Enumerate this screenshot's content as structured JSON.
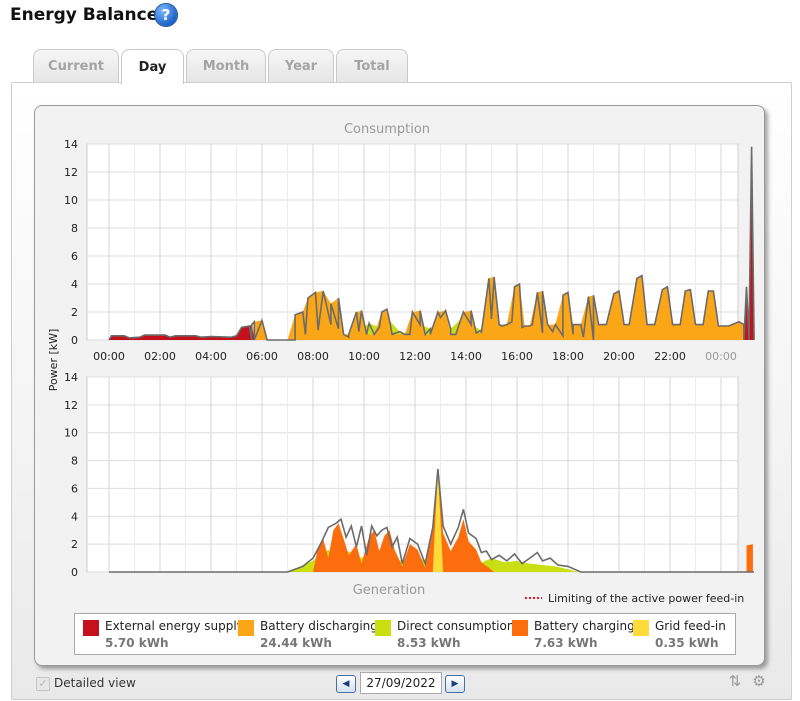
{
  "header": {
    "title": "Energy Balance",
    "help_icon": "help-icon"
  },
  "tabs": [
    {
      "label": "Current",
      "active": false
    },
    {
      "label": "Day",
      "active": true
    },
    {
      "label": "Month",
      "active": false
    },
    {
      "label": "Year",
      "active": false
    },
    {
      "label": "Total",
      "active": false
    }
  ],
  "colors": {
    "external": "#c4111b",
    "battery_discharging": "#fba617",
    "direct_consumption": "#c9df12",
    "battery_charging": "#fc6d0e",
    "grid_feed_in": "#fddc3a",
    "outline": "#6b6b6b",
    "limit_line": "#e01a1a"
  },
  "chart_data": {
    "type": "area",
    "ylabel": "Power [kW]",
    "x_ticks": [
      "00:00",
      "02:00",
      "04:00",
      "06:00",
      "08:00",
      "10:00",
      "12:00",
      "14:00",
      "16:00",
      "18:00",
      "20:00",
      "22:00",
      "00:00"
    ],
    "y_ticks": [
      "0",
      "2",
      "4",
      "6",
      "8",
      "10",
      "12",
      "14"
    ],
    "ylim": [
      0,
      14
    ],
    "grid": true,
    "consumption": {
      "title": "Consumption",
      "series": [
        {
          "name": "Direct consumption",
          "color": "#c9df12",
          "points": [
            [
              7.3,
              0
            ],
            [
              7.7,
              0.4
            ],
            [
              8.2,
              0.7
            ],
            [
              8.7,
              1.1
            ],
            [
              9.0,
              0.8
            ],
            [
              9.4,
              0.2
            ],
            [
              9.8,
              0.6
            ],
            [
              10.2,
              1.2
            ],
            [
              10.6,
              0.9
            ],
            [
              11.0,
              1.4
            ],
            [
              11.4,
              0.6
            ],
            [
              11.8,
              0.4
            ],
            [
              12.2,
              1.1
            ],
            [
              12.6,
              0.8
            ],
            [
              13.0,
              1.6
            ],
            [
              13.4,
              0.8
            ],
            [
              13.8,
              1.5
            ],
            [
              14.2,
              1.1
            ],
            [
              14.6,
              0.7
            ],
            [
              15.0,
              1.5
            ],
            [
              15.4,
              1.0
            ],
            [
              15.8,
              1.3
            ],
            [
              16.2,
              0.9
            ],
            [
              16.6,
              1.1
            ],
            [
              17.0,
              0.5
            ],
            [
              17.4,
              0.6
            ],
            [
              17.8,
              0.3
            ],
            [
              18.2,
              0.4
            ],
            [
              18.6,
              0.2
            ],
            [
              19.0,
              0
            ]
          ]
        },
        {
          "name": "Battery discharging",
          "color": "#fba617",
          "points": [
            [
              5.6,
              0
            ],
            [
              5.7,
              1.3
            ],
            [
              6.0,
              1.4
            ],
            [
              6.2,
              0
            ],
            [
              7.0,
              0
            ],
            [
              7.3,
              1.8
            ],
            [
              7.6,
              2.0
            ],
            [
              7.8,
              3.0
            ],
            [
              8.1,
              3.4
            ],
            [
              8.4,
              3.5
            ],
            [
              8.7,
              2.6
            ],
            [
              9.0,
              3.0
            ],
            [
              9.2,
              0.4
            ],
            [
              9.4,
              0.4
            ],
            [
              9.7,
              2.0
            ],
            [
              9.9,
              2.1
            ],
            [
              10.1,
              0.4
            ],
            [
              10.4,
              0.4
            ],
            [
              10.7,
              2.0
            ],
            [
              10.9,
              2.2
            ],
            [
              11.1,
              0.4
            ],
            [
              11.6,
              0.4
            ],
            [
              11.9,
              2.0
            ],
            [
              12.2,
              2.1
            ],
            [
              12.4,
              0.4
            ],
            [
              12.6,
              0.4
            ],
            [
              12.9,
              2.0
            ],
            [
              13.2,
              2.1
            ],
            [
              13.4,
              0.4
            ],
            [
              13.6,
              0.4
            ],
            [
              13.9,
              2.0
            ],
            [
              14.2,
              2.1
            ],
            [
              14.4,
              0.5
            ],
            [
              14.6,
              0.5
            ],
            [
              14.9,
              4.4
            ],
            [
              15.1,
              4.5
            ],
            [
              15.3,
              1.1
            ],
            [
              15.6,
              1.1
            ],
            [
              15.9,
              3.8
            ],
            [
              16.1,
              4.0
            ],
            [
              16.3,
              1.0
            ],
            [
              16.5,
              1.0
            ],
            [
              16.8,
              3.4
            ],
            [
              17.0,
              3.5
            ],
            [
              17.2,
              1.1
            ],
            [
              17.5,
              1.1
            ],
            [
              17.8,
              3.2
            ],
            [
              18.0,
              3.4
            ],
            [
              18.2,
              1.1
            ],
            [
              18.5,
              1.1
            ],
            [
              18.8,
              3.1
            ],
            [
              19.0,
              3.2
            ],
            [
              19.2,
              1.1
            ],
            [
              19.5,
              1.1
            ],
            [
              19.8,
              3.3
            ],
            [
              20.0,
              3.5
            ],
            [
              20.2,
              1.1
            ],
            [
              20.4,
              1.1
            ],
            [
              20.7,
              4.4
            ],
            [
              20.9,
              4.6
            ],
            [
              21.1,
              1.1
            ],
            [
              21.4,
              1.1
            ],
            [
              21.7,
              3.6
            ],
            [
              21.9,
              3.8
            ],
            [
              22.1,
              1.1
            ],
            [
              22.4,
              1.1
            ],
            [
              22.6,
              3.5
            ],
            [
              22.8,
              3.6
            ],
            [
              23.0,
              1.1
            ],
            [
              23.3,
              1.1
            ],
            [
              23.5,
              3.5
            ],
            [
              23.7,
              3.5
            ],
            [
              23.9,
              1.0
            ],
            [
              24.3,
              1.0
            ],
            [
              24.7,
              1.3
            ],
            [
              24.9,
              1.1
            ],
            [
              25.1,
              0
            ]
          ]
        },
        {
          "name": "External energy supply",
          "color": "#c4111b",
          "points": [
            [
              0.0,
              0
            ],
            [
              0.1,
              0.3
            ],
            [
              0.6,
              0.3
            ],
            [
              0.8,
              0.15
            ],
            [
              1.2,
              0.2
            ],
            [
              1.4,
              0.35
            ],
            [
              2.2,
              0.35
            ],
            [
              2.4,
              0.2
            ],
            [
              2.6,
              0.3
            ],
            [
              3.4,
              0.3
            ],
            [
              3.6,
              0.2
            ],
            [
              4.0,
              0.25
            ],
            [
              4.8,
              0.2
            ],
            [
              5.0,
              0.3
            ],
            [
              5.2,
              0.9
            ],
            [
              5.5,
              1.0
            ],
            [
              5.6,
              1.1
            ],
            [
              5.7,
              0
            ],
            [
              24.9,
              0
            ],
            [
              25.0,
              3.8
            ],
            [
              25.1,
              0.8
            ],
            [
              25.2,
              13.8
            ],
            [
              25.3,
              0
            ]
          ]
        }
      ],
      "limit_label": "Limiting of the active power feed-in"
    },
    "generation": {
      "title": "Generation",
      "series": [
        {
          "name": "Direct consumption",
          "color": "#c9df12",
          "points": [
            [
              7.0,
              0
            ],
            [
              7.5,
              0.4
            ],
            [
              8.0,
              0.8
            ],
            [
              8.3,
              1.3
            ],
            [
              8.6,
              1.6
            ],
            [
              9.0,
              1.2
            ],
            [
              9.4,
              1.5
            ],
            [
              9.8,
              1.0
            ],
            [
              10.2,
              1.2
            ],
            [
              10.6,
              0.9
            ],
            [
              11.0,
              1.1
            ],
            [
              11.5,
              0.8
            ],
            [
              12.0,
              1.2
            ],
            [
              12.5,
              0.7
            ],
            [
              13.0,
              1.0
            ],
            [
              13.5,
              0.6
            ],
            [
              14.0,
              0.8
            ],
            [
              14.5,
              0.6
            ],
            [
              15.0,
              1.0
            ],
            [
              15.5,
              0.7
            ],
            [
              16.0,
              0.8
            ],
            [
              16.5,
              0.6
            ],
            [
              17.0,
              0.5
            ],
            [
              17.5,
              0.4
            ],
            [
              18.0,
              0.2
            ],
            [
              18.4,
              0
            ]
          ]
        },
        {
          "name": "Battery charging",
          "color": "#fc6d0e",
          "points": [
            [
              8.0,
              0
            ],
            [
              8.2,
              1.8
            ],
            [
              8.4,
              2.4
            ],
            [
              8.6,
              1.0
            ],
            [
              8.8,
              3.0
            ],
            [
              9.0,
              3.5
            ],
            [
              9.2,
              2.4
            ],
            [
              9.4,
              1.2
            ],
            [
              9.7,
              2.0
            ],
            [
              9.9,
              0.6
            ],
            [
              10.2,
              2.5
            ],
            [
              10.4,
              3.0
            ],
            [
              10.6,
              1.5
            ],
            [
              10.8,
              2.6
            ],
            [
              11.0,
              3.0
            ],
            [
              11.2,
              1.6
            ],
            [
              11.5,
              0.4
            ],
            [
              11.8,
              2.0
            ],
            [
              12.1,
              1.6
            ],
            [
              12.4,
              0.3
            ],
            [
              12.7,
              3.2
            ],
            [
              12.9,
              7.0
            ],
            [
              13.1,
              2.8
            ],
            [
              13.4,
              1.5
            ],
            [
              13.7,
              2.5
            ],
            [
              13.9,
              3.8
            ],
            [
              14.1,
              2.2
            ],
            [
              14.4,
              1.6
            ],
            [
              14.6,
              0.7
            ],
            [
              14.9,
              0.3
            ],
            [
              15.1,
              0
            ]
          ]
        },
        {
          "name": "Grid feed-in",
          "color": "#fddc3a",
          "points": [
            [
              12.7,
              0
            ],
            [
              12.9,
              7.4
            ],
            [
              13.1,
              0
            ]
          ]
        },
        {
          "name": "Battery charging",
          "color": "#fc6d0e",
          "points": [
            [
              25.0,
              0
            ],
            [
              25.0,
              1.9
            ],
            [
              25.25,
              2.0
            ],
            [
              25.25,
              0
            ]
          ]
        }
      ],
      "outline_points": [
        [
          0,
          0
        ],
        [
          7.0,
          0
        ],
        [
          7.6,
          0.4
        ],
        [
          8.0,
          1.0
        ],
        [
          8.3,
          2.0
        ],
        [
          8.6,
          3.2
        ],
        [
          8.9,
          3.5
        ],
        [
          9.1,
          3.8
        ],
        [
          9.3,
          2.5
        ],
        [
          9.5,
          3.3
        ],
        [
          9.7,
          1.8
        ],
        [
          9.9,
          3.3
        ],
        [
          10.1,
          1.2
        ],
        [
          10.3,
          3.3
        ],
        [
          10.5,
          2.6
        ],
        [
          10.7,
          3.0
        ],
        [
          10.9,
          3.2
        ],
        [
          11.1,
          1.8
        ],
        [
          11.3,
          2.5
        ],
        [
          11.5,
          0.6
        ],
        [
          11.8,
          2.4
        ],
        [
          12.1,
          2.0
        ],
        [
          12.4,
          0.6
        ],
        [
          12.7,
          3.2
        ],
        [
          12.9,
          7.4
        ],
        [
          13.1,
          3.3
        ],
        [
          13.4,
          2.0
        ],
        [
          13.7,
          3.2
        ],
        [
          13.9,
          4.5
        ],
        [
          14.1,
          2.8
        ],
        [
          14.4,
          2.4
        ],
        [
          14.6,
          1.4
        ],
        [
          14.8,
          1.5
        ],
        [
          15.0,
          0.9
        ],
        [
          15.3,
          1.2
        ],
        [
          15.6,
          0.8
        ],
        [
          15.9,
          1.3
        ],
        [
          16.2,
          0.6
        ],
        [
          16.5,
          1.0
        ],
        [
          16.8,
          1.4
        ],
        [
          17.0,
          0.8
        ],
        [
          17.3,
          1.0
        ],
        [
          17.6,
          0.5
        ],
        [
          18.0,
          0.4
        ],
        [
          18.5,
          0
        ],
        [
          25.3,
          0
        ]
      ]
    }
  },
  "legend": [
    {
      "label": "External energy supply",
      "value": "5.70 kWh",
      "color": "#c4111b"
    },
    {
      "label": "Battery discharging",
      "value": "24.44 kWh",
      "color": "#fba617"
    },
    {
      "label": "Direct consumption",
      "value": "8.53 kWh",
      "color": "#c9df12"
    },
    {
      "label": "Battery charging",
      "value": "7.63 kWh",
      "color": "#fc6d0e"
    },
    {
      "label": "Grid feed-in",
      "value": "0.35 kWh",
      "color": "#fddc3a"
    }
  ],
  "footer": {
    "detailed_view_label": "Detailed view",
    "date": "27/09/2022"
  }
}
